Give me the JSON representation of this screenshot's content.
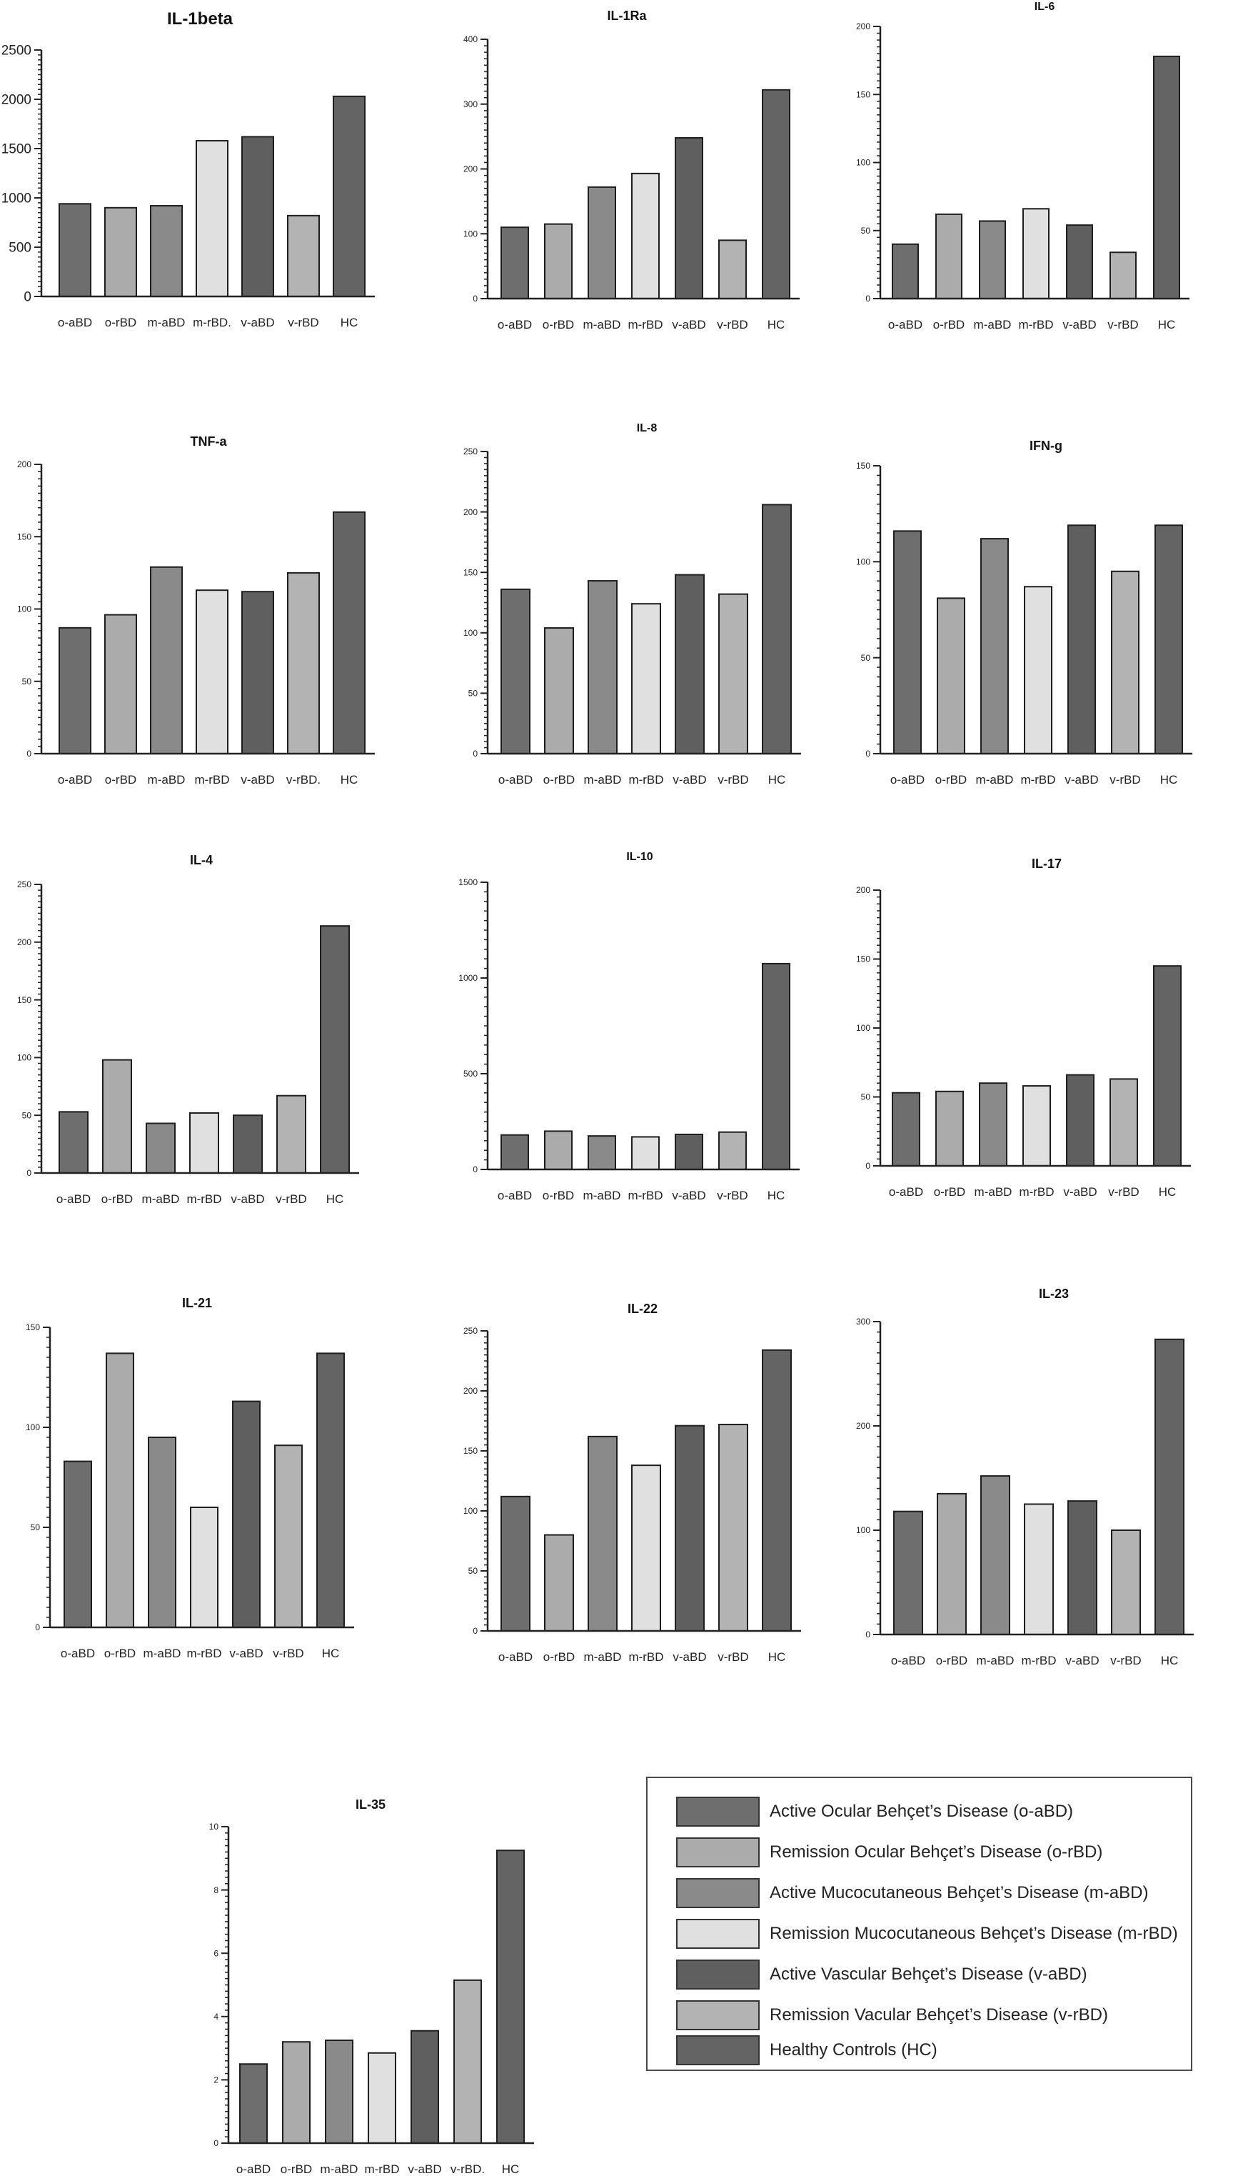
{
  "colors": {
    "o-aBD": "#6e6e6e",
    "o-rBD": "#ababab",
    "m-aBD": "#8a8a8a",
    "m-rBD": "#e0e0e0",
    "v-aBD": "#5f5f5f",
    "v-rBD": "#b3b3b3",
    "HC": "#646464",
    "axis": "#222222"
  },
  "legend": {
    "items": [
      {
        "key": "o-aBD",
        "label": "Active Ocular Behçet’s Disease (o-aBD)"
      },
      {
        "key": "o-rBD",
        "label": "Remission Ocular Behçet’s Disease (o-rBD)"
      },
      {
        "key": "m-aBD",
        "label": "Active Mucocutaneous Behçet’s Disease (m-aBD)"
      },
      {
        "key": "m-rBD",
        "label": "Remission Mucocutaneous Behçet’s Disease (m-rBD)"
      },
      {
        "key": "v-aBD",
        "label": "Active Vascular Behçet’s Disease (v-aBD)"
      },
      {
        "key": "v-rBD",
        "label": "Remission Vacular Behçet’s Disease (v-rBD)"
      },
      {
        "key": "HC",
        "label": "Healthy Controls (HC)"
      }
    ]
  },
  "chart_data": [
    {
      "type": "bar",
      "title": "IL-1beta",
      "categories": [
        "o-aBD",
        "o-rBD",
        "m-aBD",
        "m-rBD.",
        "v-aBD",
        "v-rBD",
        "HC"
      ],
      "values": [
        940,
        900,
        920,
        1580,
        1620,
        820,
        2030
      ],
      "ylim": [
        0,
        2500
      ],
      "yticks": [
        0,
        500,
        1000,
        1500,
        2000,
        2500
      ],
      "xlabel": "",
      "ylabel": "",
      "grid": false
    },
    {
      "type": "bar",
      "title": "IL-1Ra",
      "categories": [
        "o-aBD",
        "o-rBD",
        "m-aBD",
        "m-rBD",
        "v-aBD",
        "v-rBD",
        "HC"
      ],
      "values": [
        110,
        115,
        172,
        193,
        248,
        90,
        322
      ],
      "ylim": [
        0,
        400
      ],
      "yticks": [
        0,
        100,
        200,
        300,
        400
      ],
      "xlabel": "",
      "ylabel": "",
      "grid": false
    },
    {
      "type": "bar",
      "title": "IL-6",
      "categories": [
        "o-aBD",
        "o-rBD",
        "m-aBD",
        "m-rBD",
        "v-aBD",
        "v-rBD",
        "HC"
      ],
      "values": [
        40,
        62,
        57,
        66,
        54,
        34,
        178
      ],
      "ylim": [
        0,
        200
      ],
      "yticks": [
        0,
        50,
        100,
        150,
        200
      ],
      "xlabel": "",
      "ylabel": "",
      "grid": false
    },
    {
      "type": "bar",
      "title": "TNF-a",
      "categories": [
        "o-aBD",
        "o-rBD",
        "m-aBD",
        "m-rBD",
        "v-aBD",
        "v-rBD.",
        "HC"
      ],
      "values": [
        87,
        96,
        129,
        113,
        112,
        125,
        167
      ],
      "ylim": [
        0,
        200
      ],
      "yticks": [
        0,
        50,
        100,
        150,
        200
      ],
      "xlabel": "",
      "ylabel": "",
      "grid": false
    },
    {
      "type": "bar",
      "title": "IL-8",
      "categories": [
        "o-aBD",
        "o-rBD",
        "m-aBD",
        "m-rBD",
        "v-aBD",
        "v-rBD",
        "HC"
      ],
      "values": [
        136,
        104,
        143,
        124,
        148,
        132,
        206
      ],
      "ylim": [
        0,
        250
      ],
      "yticks": [
        0,
        50,
        100,
        150,
        200,
        250
      ],
      "xlabel": "",
      "ylabel": "",
      "grid": false
    },
    {
      "type": "bar",
      "title": "IFN-g",
      "categories": [
        "o-aBD",
        "o-rBD",
        "m-aBD",
        "m-rBD",
        "v-aBD",
        "v-rBD",
        "HC"
      ],
      "values": [
        116,
        81,
        112,
        87,
        119,
        95,
        119
      ],
      "ylim": [
        0,
        150
      ],
      "yticks": [
        0,
        50,
        100,
        150
      ],
      "xlabel": "",
      "ylabel": "",
      "grid": false
    },
    {
      "type": "bar",
      "title": "IL-4",
      "categories": [
        "o-aBD",
        "o-rBD",
        "m-aBD",
        "m-rBD",
        "v-aBD",
        "v-rBD",
        "HC"
      ],
      "values": [
        53,
        98,
        43,
        52,
        50,
        67,
        214
      ],
      "ylim": [
        0,
        250
      ],
      "yticks": [
        0,
        50,
        100,
        150,
        200,
        250
      ],
      "xlabel": "",
      "ylabel": "",
      "grid": false
    },
    {
      "type": "bar",
      "title": "IL-10",
      "categories": [
        "o-aBD",
        "o-rBD",
        "m-aBD",
        "m-rBD",
        "v-aBD",
        "v-rBD",
        "HC"
      ],
      "values": [
        180,
        200,
        175,
        170,
        183,
        195,
        1075
      ],
      "ylim": [
        0,
        1500
      ],
      "yticks": [
        0,
        500,
        1000,
        1500
      ],
      "xlabel": "",
      "ylabel": "",
      "grid": false
    },
    {
      "type": "bar",
      "title": "IL-17",
      "categories": [
        "o-aBD",
        "o-rBD",
        "m-aBD",
        "m-rBD",
        "v-aBD",
        "v-rBD",
        "HC"
      ],
      "values": [
        53,
        54,
        60,
        58,
        66,
        63,
        145
      ],
      "ylim": [
        0,
        200
      ],
      "yticks": [
        0,
        50,
        100,
        150,
        200
      ],
      "xlabel": "",
      "ylabel": "",
      "grid": false
    },
    {
      "type": "bar",
      "title": "IL-21",
      "categories": [
        "o-aBD",
        "o-rBD",
        "m-aBD",
        "m-rBD",
        "v-aBD",
        "v-rBD",
        "HC"
      ],
      "values": [
        83,
        137,
        95,
        60,
        113,
        91,
        137
      ],
      "ylim": [
        0,
        150
      ],
      "yticks": [
        0,
        50,
        100,
        150
      ],
      "xlabel": "",
      "ylabel": "",
      "grid": false
    },
    {
      "type": "bar",
      "title": "IL-22",
      "categories": [
        "o-aBD",
        "o-rBD",
        "m-aBD",
        "m-rBD",
        "v-aBD",
        "v-rBD",
        "HC"
      ],
      "values": [
        112,
        80,
        162,
        138,
        171,
        172,
        234
      ],
      "ylim": [
        0,
        250
      ],
      "yticks": [
        0,
        50,
        100,
        150,
        200,
        250
      ],
      "xlabel": "",
      "ylabel": "",
      "grid": false
    },
    {
      "type": "bar",
      "title": "IL-23",
      "categories": [
        "o-aBD",
        "o-rBD",
        "m-aBD",
        "m-rBD",
        "v-aBD",
        "v-rBD",
        "HC"
      ],
      "values": [
        118,
        135,
        152,
        125,
        128,
        100,
        283
      ],
      "ylim": [
        0,
        300
      ],
      "yticks": [
        0,
        100,
        200,
        300
      ],
      "xlabel": "",
      "ylabel": "",
      "grid": false
    },
    {
      "type": "bar",
      "title": "IL-35",
      "categories": [
        "o-aBD",
        "o-rBD",
        "m-aBD",
        "m-rBD",
        "v-aBD",
        "v-rBD.",
        "HC"
      ],
      "values": [
        2.5,
        3.2,
        3.25,
        2.85,
        3.55,
        5.15,
        9.25
      ],
      "ylim": [
        0,
        10
      ],
      "yticks": [
        0,
        2,
        4,
        6,
        8,
        10
      ],
      "xlabel": "",
      "ylabel": "",
      "grid": false
    }
  ]
}
